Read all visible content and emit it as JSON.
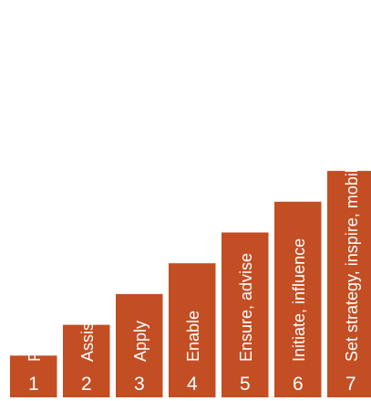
{
  "chart_data": {
    "type": "bar",
    "title": "",
    "xlabel": "",
    "ylabel": "",
    "ylim": [
      0,
      7
    ],
    "grid": false,
    "legend": "none",
    "bar_color": "#C34E24",
    "categories": [
      "1",
      "2",
      "3",
      "4",
      "5",
      "6",
      "7"
    ],
    "bar_labels": [
      "Follow",
      "Assist",
      "Apply",
      "Enable",
      "Ensure, advise",
      "Initiate, influence",
      "Set strategy, inspire, mobilise"
    ],
    "values": [
      1,
      2,
      3,
      4,
      5,
      6,
      7
    ]
  }
}
